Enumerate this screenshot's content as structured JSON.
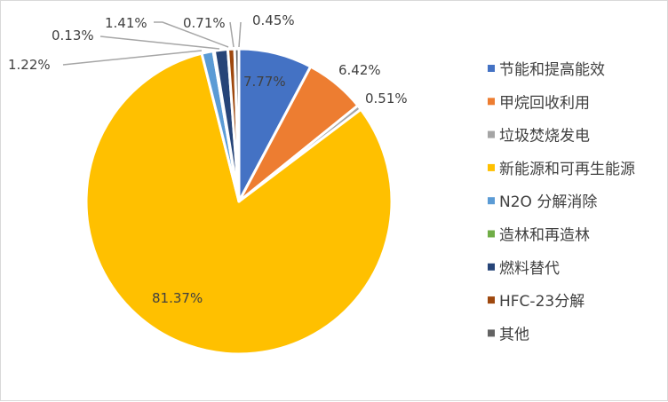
{
  "chart_data": {
    "type": "pie",
    "title": "",
    "slices": [
      {
        "label": "节能和提高能效",
        "value": 7.77,
        "display": "7.77%",
        "color": "#4472C4"
      },
      {
        "label": "甲烷回收利用",
        "value": 6.42,
        "display": "6.42%",
        "color": "#ED7D31"
      },
      {
        "label": "垃圾焚烧发电",
        "value": 0.51,
        "display": "0.51%",
        "color": "#A5A5A5"
      },
      {
        "label": "新能源和可再生能源",
        "value": 81.37,
        "display": "81.37%",
        "color": "#FFC000"
      },
      {
        "label": "N2O 分解消除",
        "value": 1.22,
        "display": "1.22%",
        "color": "#5B9BD5"
      },
      {
        "label": "造林和再造林",
        "value": 0.13,
        "display": "0.13%",
        "color": "#70AD47"
      },
      {
        "label": "燃料替代",
        "value": 1.41,
        "display": "1.41%",
        "color": "#264478"
      },
      {
        "label": "HFC-23分解",
        "value": 0.71,
        "display": "0.71%",
        "color": "#9E480E"
      },
      {
        "label": "其他",
        "value": 0.45,
        "display": "0.45%",
        "color": "#636363"
      }
    ],
    "start_angle_deg": 0,
    "direction": "clockwise",
    "legend_position": "right"
  }
}
